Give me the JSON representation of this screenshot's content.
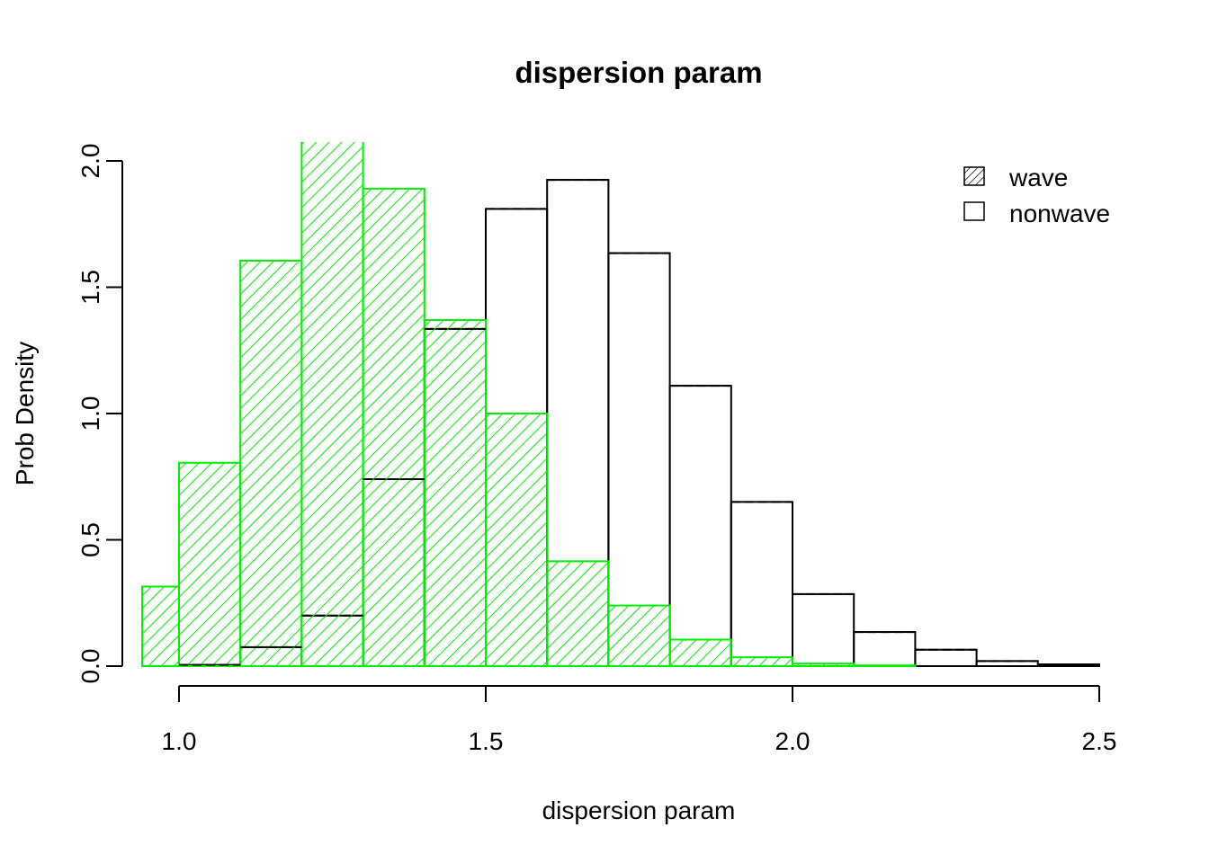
{
  "chart_data": {
    "type": "bar",
    "title": "dispersion param",
    "xlabel": "dispersion param",
    "ylabel": "Prob Density",
    "xlim": [
      0.94,
      2.5
    ],
    "ylim": [
      0,
      2.0
    ],
    "x_ticks": [
      "1.0",
      "1.5",
      "2.0",
      "2.5"
    ],
    "y_ticks": [
      "0.0",
      "0.5",
      "1.0",
      "1.5",
      "2.0"
    ],
    "legend_position": "top-right",
    "grid": false,
    "series": [
      {
        "name": "nonwave",
        "fill": "none",
        "color": "#000000",
        "bins": [
          {
            "x0": 1.0,
            "x1": 1.1,
            "value": 0.005
          },
          {
            "x0": 1.1,
            "x1": 1.2,
            "value": 0.075
          },
          {
            "x0": 1.2,
            "x1": 1.3,
            "value": 0.2
          },
          {
            "x0": 1.3,
            "x1": 1.4,
            "value": 0.74
          },
          {
            "x0": 1.4,
            "x1": 1.5,
            "value": 1.335
          },
          {
            "x0": 1.5,
            "x1": 1.6,
            "value": 1.81
          },
          {
            "x0": 1.6,
            "x1": 1.7,
            "value": 1.925
          },
          {
            "x0": 1.7,
            "x1": 1.8,
            "value": 1.635
          },
          {
            "x0": 1.8,
            "x1": 1.9,
            "value": 1.11
          },
          {
            "x0": 1.9,
            "x1": 2.0,
            "value": 0.65
          },
          {
            "x0": 2.0,
            "x1": 2.1,
            "value": 0.285
          },
          {
            "x0": 2.1,
            "x1": 2.2,
            "value": 0.135
          },
          {
            "x0": 2.2,
            "x1": 2.3,
            "value": 0.065
          },
          {
            "x0": 2.3,
            "x1": 2.4,
            "value": 0.02
          },
          {
            "x0": 2.4,
            "x1": 2.5,
            "value": 0.007
          }
        ]
      },
      {
        "name": "wave",
        "fill": "hatch",
        "color": "#00ee00",
        "bins": [
          {
            "x0": 0.94,
            "x1": 1.0,
            "value": 0.315
          },
          {
            "x0": 1.0,
            "x1": 1.1,
            "value": 0.805
          },
          {
            "x0": 1.1,
            "x1": 1.2,
            "value": 1.605
          },
          {
            "x0": 1.2,
            "x1": 1.3,
            "value": 2.08
          },
          {
            "x0": 1.3,
            "x1": 1.4,
            "value": 1.89
          },
          {
            "x0": 1.4,
            "x1": 1.5,
            "value": 1.37
          },
          {
            "x0": 1.5,
            "x1": 1.6,
            "value": 1.0
          },
          {
            "x0": 1.6,
            "x1": 1.7,
            "value": 0.415
          },
          {
            "x0": 1.7,
            "x1": 1.8,
            "value": 0.24
          },
          {
            "x0": 1.8,
            "x1": 1.9,
            "value": 0.105
          },
          {
            "x0": 1.9,
            "x1": 2.0,
            "value": 0.035
          },
          {
            "x0": 2.0,
            "x1": 2.1,
            "value": 0.01
          },
          {
            "x0": 2.1,
            "x1": 2.2,
            "value": 0.003
          }
        ]
      }
    ],
    "legend": [
      {
        "label": "wave",
        "fill": "hatch"
      },
      {
        "label": "nonwave",
        "fill": "none"
      }
    ]
  }
}
